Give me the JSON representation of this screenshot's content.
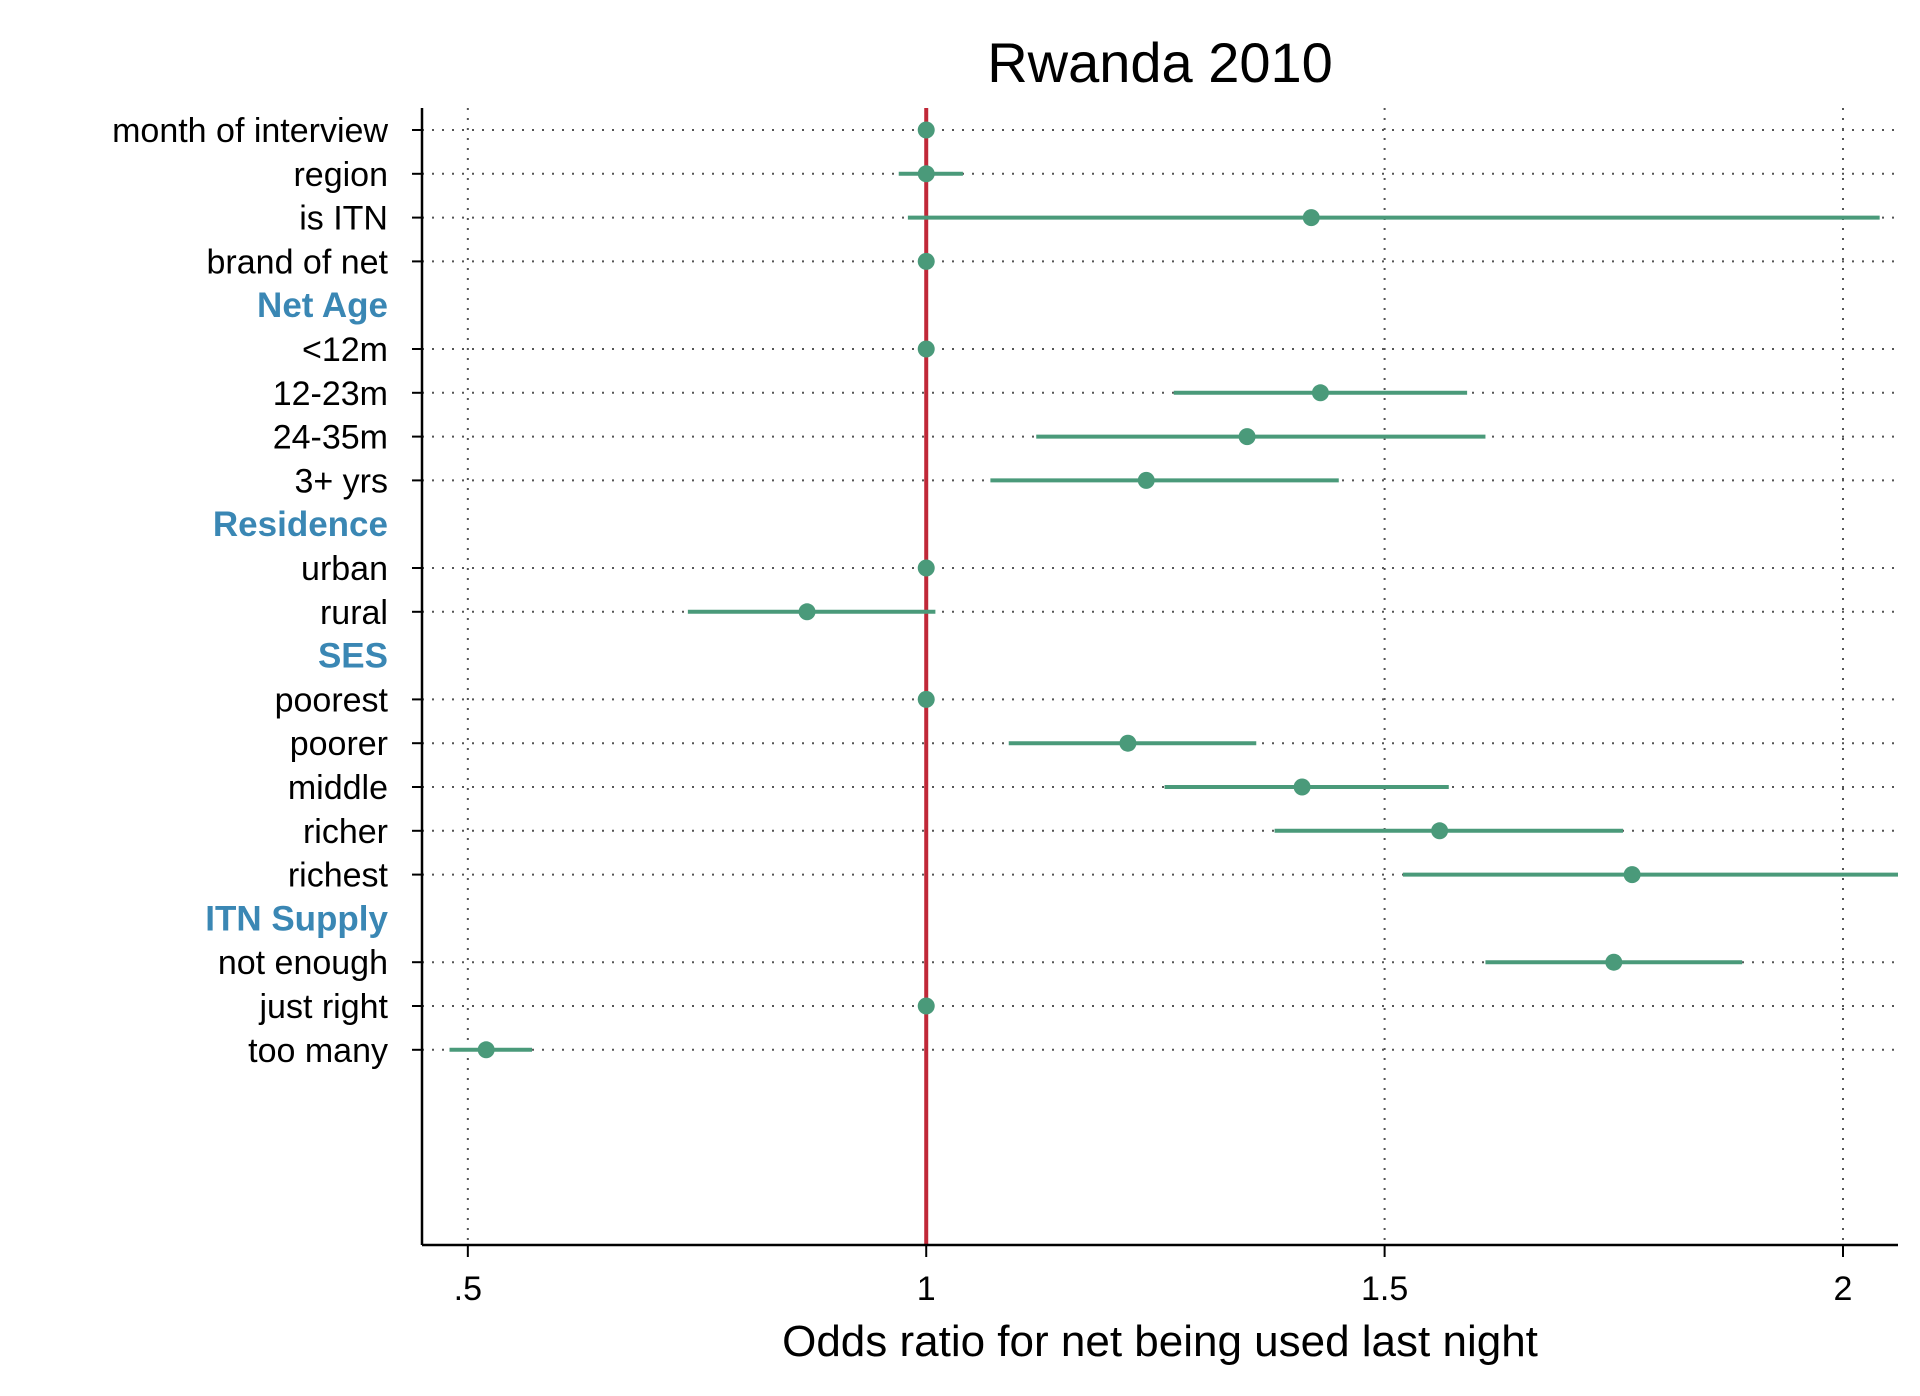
{
  "chart_data": {
    "type": "forest",
    "title": "Rwanda 2010",
    "xlabel": "Odds ratio for net being used last night",
    "xlim": [
      0.45,
      2.06
    ],
    "xticks": [
      0.5,
      1,
      1.5,
      2
    ],
    "xtick_labels": [
      ".5",
      "1",
      "1.5",
      "2"
    ],
    "reference_line": 1,
    "colors": {
      "point": "#4a9a7a",
      "reference": "#c02838",
      "group_heading": "#3a87b4",
      "grid": "#555555"
    },
    "rows": [
      {
        "kind": "item",
        "label": "month of interview",
        "est": 1.0,
        "lo": 1.0,
        "hi": 1.0
      },
      {
        "kind": "item",
        "label": "region",
        "est": 1.0,
        "lo": 0.97,
        "hi": 1.04
      },
      {
        "kind": "item",
        "label": "is ITN",
        "est": 1.42,
        "lo": 0.98,
        "hi": 2.04
      },
      {
        "kind": "item",
        "label": "brand of net",
        "est": 1.0,
        "lo": 1.0,
        "hi": 1.0
      },
      {
        "kind": "header",
        "label": "Net Age"
      },
      {
        "kind": "item",
        "label": "<12m",
        "est": 1.0,
        "lo": 1.0,
        "hi": 1.0
      },
      {
        "kind": "item",
        "label": "12-23m",
        "est": 1.43,
        "lo": 1.27,
        "hi": 1.59
      },
      {
        "kind": "item",
        "label": "24-35m",
        "est": 1.35,
        "lo": 1.12,
        "hi": 1.61
      },
      {
        "kind": "item",
        "label": "3+ yrs",
        "est": 1.24,
        "lo": 1.07,
        "hi": 1.45
      },
      {
        "kind": "header",
        "label": "Residence"
      },
      {
        "kind": "item",
        "label": "urban",
        "est": 1.0,
        "lo": 1.0,
        "hi": 1.0
      },
      {
        "kind": "item",
        "label": "rural",
        "est": 0.87,
        "lo": 0.74,
        "hi": 1.01
      },
      {
        "kind": "header",
        "label": "SES"
      },
      {
        "kind": "item",
        "label": "poorest",
        "est": 1.0,
        "lo": 1.0,
        "hi": 1.0
      },
      {
        "kind": "item",
        "label": "poorer",
        "est": 1.22,
        "lo": 1.09,
        "hi": 1.36
      },
      {
        "kind": "item",
        "label": "middle",
        "est": 1.41,
        "lo": 1.26,
        "hi": 1.57
      },
      {
        "kind": "item",
        "label": "richer",
        "est": 1.56,
        "lo": 1.38,
        "hi": 1.76
      },
      {
        "kind": "item",
        "label": "richest",
        "est": 1.77,
        "lo": 1.52,
        "hi": 2.06
      },
      {
        "kind": "header",
        "label": "ITN Supply"
      },
      {
        "kind": "item",
        "label": "not enough",
        "est": 1.75,
        "lo": 1.61,
        "hi": 1.89
      },
      {
        "kind": "item",
        "label": "just right",
        "est": 1.0,
        "lo": 1.0,
        "hi": 1.0
      },
      {
        "kind": "item",
        "label": "too many",
        "est": 0.52,
        "lo": 0.48,
        "hi": 0.57
      }
    ]
  }
}
